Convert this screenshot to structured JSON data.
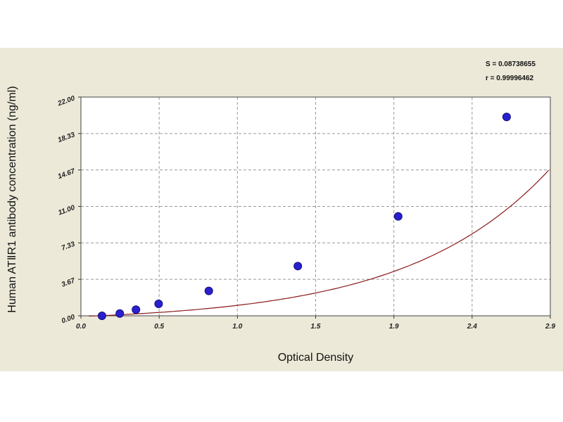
{
  "stats": {
    "s_line": "S = 0.08738655",
    "r_line": "r = 0.99996462"
  },
  "chart_data": {
    "type": "scatter",
    "title": "",
    "xlabel": "Optical Density",
    "ylabel": "Human ATⅡR1 antibody concentration (ng/ml)",
    "xlim": [
      0.0,
      2.9
    ],
    "ylim": [
      0.0,
      22.0
    ],
    "x_ticks": [
      "0.0",
      "0.5",
      "1.0",
      "1.5",
      "1.9",
      "2.4",
      "2.9"
    ],
    "y_ticks": [
      "0.00",
      "3.67",
      "7.33",
      "11.00",
      "14.67",
      "18.33",
      "22.00"
    ],
    "grid": true,
    "series": [
      {
        "points": [
          {
            "x": 0.13,
            "y": 0.0
          },
          {
            "x": 0.24,
            "y": 0.23
          },
          {
            "x": 0.34,
            "y": 0.62
          },
          {
            "x": 0.48,
            "y": 1.2
          },
          {
            "x": 0.79,
            "y": 2.5
          },
          {
            "x": 1.34,
            "y": 5.0
          },
          {
            "x": 1.96,
            "y": 10.0
          },
          {
            "x": 2.63,
            "y": 20.0
          }
        ],
        "color": "#2a1fd0",
        "curve_color": "#8b1a1a"
      }
    ]
  }
}
